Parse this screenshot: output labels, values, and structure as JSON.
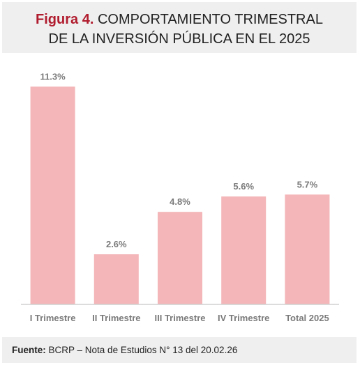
{
  "header": {
    "title_prefix": "Figura 4.",
    "title_line1": "COMPORTAMIENTO TRIMESTRAL",
    "title_line2": "DE LA INVERSIÓN PÚBLICA EN EL 2025"
  },
  "chart_data": {
    "type": "bar",
    "categories": [
      "I Trimestre",
      "II Trimestre",
      "III Trimestre",
      "IV Trimestre",
      "Total 2025"
    ],
    "values": [
      11.3,
      2.6,
      4.8,
      5.6,
      5.7
    ],
    "data_labels": [
      "11.3%",
      "2.6%",
      "4.8%",
      "5.6%",
      "5.7%"
    ],
    "ylim": [
      0,
      12
    ],
    "grid": false,
    "bar_color": "#f4b6b8",
    "label_color": "#7a7a7a"
  },
  "footer": {
    "source_label": "Fuente:",
    "source_text": "BCRP – Nota de Estudios N° 13 del 20.02.26"
  }
}
